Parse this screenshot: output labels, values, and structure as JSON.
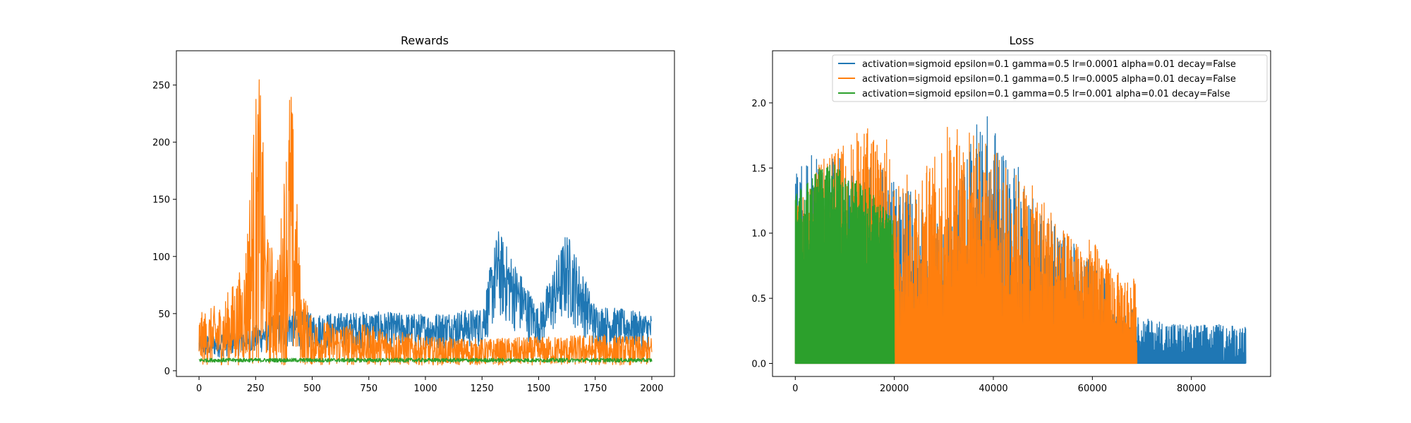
{
  "chart_data": [
    {
      "type": "line",
      "title": "Rewards",
      "xlabel": "",
      "ylabel": "",
      "xlim": [
        -100,
        2100
      ],
      "ylim": [
        -5,
        280
      ],
      "xticks": [
        0,
        250,
        500,
        750,
        1000,
        1250,
        1500,
        1750,
        2000
      ],
      "yticks": [
        0,
        50,
        100,
        150,
        200,
        250
      ],
      "grid": false,
      "series": [
        {
          "color": "#1f77b4",
          "x": [
            0,
            250,
            400,
            500,
            750,
            1000,
            1250,
            1320,
            1500,
            1625,
            1750,
            2000
          ],
          "values": [
            30,
            40,
            55,
            50,
            52,
            50,
            55,
            125,
            55,
            123,
            58,
            50
          ]
        },
        {
          "color": "#ff7f0e",
          "x": [
            0,
            100,
            200,
            250,
            270,
            300,
            350,
            404,
            450,
            500,
            750,
            1000,
            1250,
            1500,
            1750,
            2000
          ],
          "values": [
            50,
            60,
            95,
            245,
            261,
            120,
            100,
            268,
            80,
            45,
            40,
            30,
            28,
            30,
            32,
            30
          ]
        },
        {
          "color": "#2ca02c",
          "x": [
            0,
            500,
            1000,
            1500,
            2000
          ],
          "values": [
            9,
            9,
            9,
            9,
            9
          ]
        }
      ]
    },
    {
      "type": "line",
      "title": "Loss",
      "xlabel": "",
      "ylabel": "",
      "xlim": [
        -4600,
        96000
      ],
      "ylim": [
        -0.1,
        2.4
      ],
      "xticks": [
        0,
        20000,
        40000,
        60000,
        80000
      ],
      "yticks": [
        0.0,
        0.5,
        1.0,
        1.5,
        2.0
      ],
      "grid": false,
      "legend": {
        "location": "upper right",
        "entries": [
          "activation=sigmoid epsilon=0.1 gamma=0.5 lr=0.0001 alpha=0.01 decay=False",
          "activation=sigmoid epsilon=0.1 gamma=0.5 lr=0.0005 alpha=0.01 decay=False",
          "activation=sigmoid epsilon=0.1 gamma=0.5 lr=0.001 alpha=0.01 decay=False"
        ]
      },
      "series": [
        {
          "color": "#1f77b4",
          "x": [
            0,
            5000,
            10000,
            20000,
            25000,
            30000,
            37500,
            50000,
            69500,
            80000,
            91000
          ],
          "values": [
            1.5,
            1.65,
            1.6,
            1.45,
            1.3,
            1.0,
            2.0,
            1.2,
            0.35,
            0.3,
            0.3
          ]
        },
        {
          "color": "#ff7f0e",
          "x": [
            0,
            5000,
            17500,
            20000,
            28000,
            31000,
            35000,
            40000,
            45000,
            50000,
            55000,
            60000,
            65000,
            69000
          ],
          "values": [
            1.2,
            1.55,
            1.93,
            1.4,
            1.58,
            1.87,
            1.82,
            1.65,
            1.45,
            1.3,
            1.0,
            0.95,
            0.7,
            0.65
          ]
        },
        {
          "color": "#2ca02c",
          "x": [
            0,
            2500,
            5000,
            7500,
            10000,
            15000,
            20000
          ],
          "values": [
            1.3,
            1.4,
            1.5,
            1.55,
            1.45,
            1.35,
            1.1
          ]
        }
      ]
    }
  ]
}
